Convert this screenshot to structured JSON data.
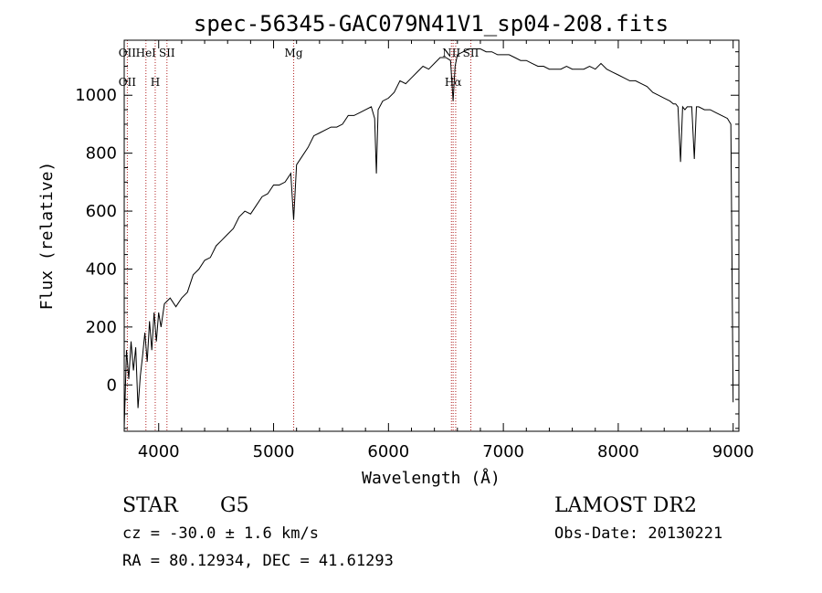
{
  "chart_data": {
    "type": "line",
    "title": "spec-56345-GAC079N41V1_sp04-208.fits",
    "xlabel": "Wavelength (Å)",
    "ylabel": "Flux (relative)",
    "xlim": [
      3700,
      9050
    ],
    "ylim": [
      -160,
      1190
    ],
    "x_ticks": [
      4000,
      5000,
      6000,
      7000,
      8000,
      9000
    ],
    "y_ticks": [
      0,
      200,
      400,
      600,
      800,
      1000
    ],
    "grid": false,
    "line_color": "#000000",
    "marker_color": "#b22222",
    "emission_lines": [
      {
        "wavelength": 3727,
        "top": "OII",
        "bottom": "OII"
      },
      {
        "wavelength": 3889,
        "top": "HeI",
        "bottom": ""
      },
      {
        "wavelength": 3970,
        "top": "",
        "bottom": "H"
      },
      {
        "wavelength": 4072,
        "top": "SII",
        "bottom": ""
      },
      {
        "wavelength": 5175,
        "top": "Mg",
        "bottom": ""
      },
      {
        "wavelength": 6548,
        "top": "NII",
        "bottom": ""
      },
      {
        "wavelength": 6563,
        "top": "",
        "bottom": "Hα"
      },
      {
        "wavelength": 6585,
        "top": "",
        "bottom": ""
      },
      {
        "wavelength": 6717,
        "top": "SII",
        "bottom": ""
      }
    ],
    "series": [
      {
        "x": [
          3700,
          3720,
          3740,
          3760,
          3780,
          3800,
          3820,
          3840,
          3860,
          3880,
          3900,
          3920,
          3940,
          3960,
          3980,
          4000,
          4020,
          4050,
          4100,
          4150,
          4200,
          4250,
          4300,
          4350,
          4400,
          4450,
          4500,
          4550,
          4600,
          4650,
          4700,
          4750,
          4800,
          4850,
          4900,
          4950,
          5000,
          5050,
          5100,
          5150,
          5175,
          5200,
          5250,
          5300,
          5350,
          5400,
          5450,
          5500,
          5550,
          5600,
          5650,
          5700,
          5750,
          5800,
          5850,
          5880,
          5895,
          5910,
          5950,
          6000,
          6050,
          6100,
          6150,
          6200,
          6250,
          6300,
          6350,
          6400,
          6450,
          6500,
          6540,
          6563,
          6580,
          6600,
          6650,
          6700,
          6750,
          6800,
          6850,
          6900,
          6950,
          7000,
          7050,
          7100,
          7150,
          7200,
          7250,
          7300,
          7350,
          7400,
          7450,
          7500,
          7550,
          7600,
          7650,
          7700,
          7750,
          7800,
          7850,
          7900,
          7950,
          8000,
          8050,
          8100,
          8150,
          8200,
          8250,
          8300,
          8350,
          8400,
          8450,
          8480,
          8500,
          8520,
          8542,
          8560,
          8580,
          8600,
          8640,
          8662,
          8680,
          8700,
          8750,
          8800,
          8850,
          8900,
          8950,
          8980,
          9000
        ],
        "y": [
          -150,
          120,
          20,
          150,
          50,
          130,
          -80,
          30,
          100,
          180,
          80,
          220,
          120,
          250,
          150,
          250,
          200,
          280,
          300,
          270,
          300,
          320,
          380,
          400,
          430,
          440,
          480,
          500,
          520,
          540,
          580,
          600,
          590,
          620,
          650,
          660,
          690,
          690,
          700,
          730,
          570,
          760,
          790,
          820,
          860,
          870,
          880,
          890,
          890,
          900,
          930,
          930,
          940,
          950,
          960,
          920,
          730,
          950,
          980,
          990,
          1010,
          1050,
          1040,
          1060,
          1080,
          1100,
          1090,
          1110,
          1130,
          1130,
          1120,
          980,
          1100,
          1140,
          1150,
          1160,
          1160,
          1160,
          1150,
          1150,
          1140,
          1140,
          1140,
          1130,
          1120,
          1120,
          1110,
          1100,
          1100,
          1090,
          1090,
          1090,
          1100,
          1090,
          1090,
          1090,
          1100,
          1090,
          1110,
          1090,
          1080,
          1070,
          1060,
          1050,
          1050,
          1040,
          1030,
          1010,
          1000,
          990,
          980,
          970,
          970,
          960,
          770,
          960,
          950,
          960,
          960,
          780,
          960,
          960,
          950,
          950,
          940,
          930,
          920,
          900,
          -60
        ]
      }
    ]
  },
  "info": {
    "object_class": "STAR",
    "subclass": "G5",
    "survey": "LAMOST DR2",
    "redshift": "cz = -30.0 ± 1.6 km/s",
    "obs_date": "Obs-Date: 20130221",
    "coords": "RA =  80.12934, DEC =  41.61293"
  }
}
